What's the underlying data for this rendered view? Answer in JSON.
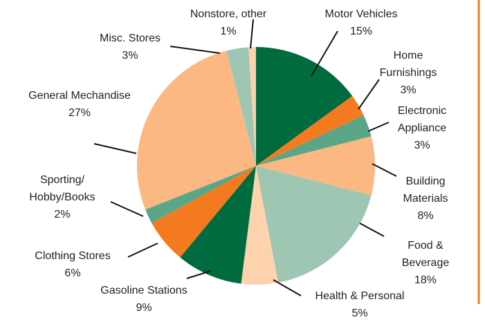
{
  "chart_data": {
    "type": "pie",
    "categories": [
      "Motor Vehicles",
      "Home Furnishings",
      "Electronic\nAppliance",
      "Building\nMaterials",
      "Food & Beverage",
      "Health & Personal",
      "Gasoline Stations",
      "Clothing Stores",
      "Sporting/\nHobby/Books",
      "General Mechandise",
      "Misc. Stores",
      "Nonstore, other"
    ],
    "values": [
      15,
      3,
      3,
      8,
      18,
      5,
      9,
      6,
      2,
      27,
      3,
      1
    ],
    "value_labels": [
      "15%",
      "3%",
      "3%",
      "8%",
      "18%",
      "5%",
      "9%",
      "6%",
      "2%",
      "27%",
      "3%",
      "1%"
    ],
    "colors": [
      "#006b3f",
      "#f47a20",
      "#5aa687",
      "#fbb883",
      "#9fc5b3",
      "#fdd2ac",
      "#006b3f",
      "#f47a20",
      "#5aa687",
      "#fbb883",
      "#9fc5b3",
      "#fdd2ac"
    ]
  }
}
